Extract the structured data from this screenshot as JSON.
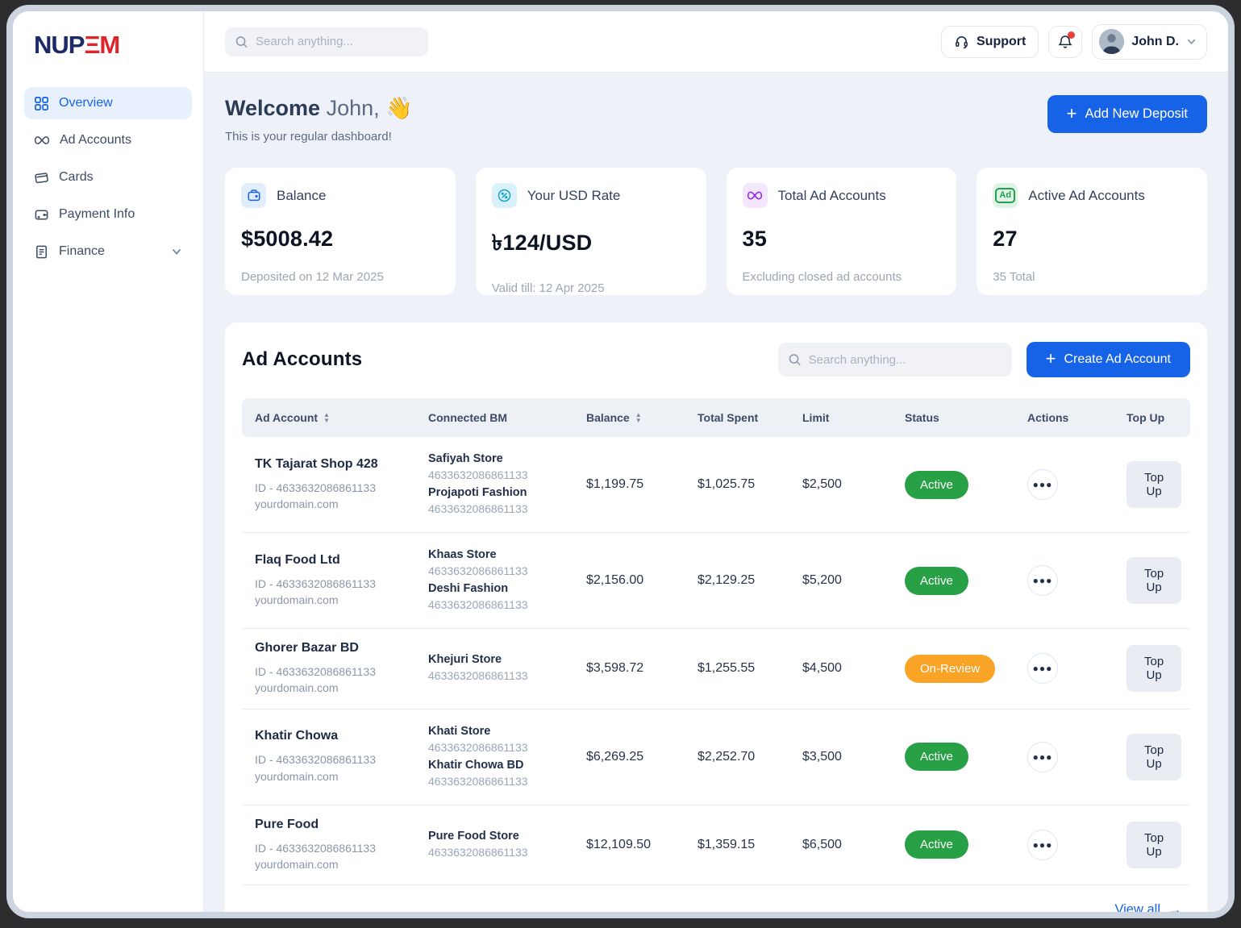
{
  "brand": {
    "logo_navy": "NUP",
    "logo_red": "ΞM"
  },
  "topbar": {
    "search_placeholder": "Search anything...",
    "support_label": "Support",
    "user_name": "John D."
  },
  "sidebar": {
    "items": [
      {
        "label": "Overview",
        "active": true
      },
      {
        "label": "Ad Accounts",
        "active": false
      },
      {
        "label": "Cards",
        "active": false
      },
      {
        "label": "Payment Info",
        "active": false
      },
      {
        "label": "Finance",
        "active": false,
        "expandable": true
      }
    ]
  },
  "welcome": {
    "title_bold": "Welcome",
    "title_name": "John,",
    "emoji": "👋",
    "subtitle": "This is your regular dashboard!",
    "deposit_button": "Add New Deposit"
  },
  "stats": [
    {
      "label": "Balance",
      "value": "$5008.42",
      "note": "Deposited on 12 Mar 2025",
      "icon": "wallet-icon"
    },
    {
      "label": "Your USD Rate",
      "value": "৳124/USD",
      "note": "Valid till: 12 Apr 2025",
      "icon": "percent-icon"
    },
    {
      "label": "Total Ad Accounts",
      "value": "35",
      "note": "Excluding closed ad accounts",
      "icon": "meta-icon"
    },
    {
      "label": "Active Ad Accounts",
      "value": "27",
      "note": "35 Total",
      "icon": "ad-badge-icon"
    }
  ],
  "table": {
    "title": "Ad Accounts",
    "search_placeholder": "Search anything...",
    "create_button": "Create Ad Account",
    "columns": [
      {
        "label": "Ad Account",
        "sortable": true
      },
      {
        "label": "Connected BM",
        "sortable": false
      },
      {
        "label": "Balance",
        "sortable": true
      },
      {
        "label": "Total Spent",
        "sortable": false
      },
      {
        "label": "Limit",
        "sortable": false
      },
      {
        "label": "Status",
        "sortable": false
      },
      {
        "label": "Actions",
        "sortable": false
      },
      {
        "label": "Top Up",
        "sortable": false
      }
    ],
    "topup_label": "Top Up",
    "view_all": "View all",
    "rows": [
      {
        "name": "TK Tajarat Shop 428",
        "id": "ID - 4633632086861133",
        "domain": "yourdomain.com",
        "bms": [
          {
            "name": "Safiyah Store",
            "id": "4633632086861133"
          },
          {
            "name": "Projapoti Fashion",
            "id": "4633632086861133"
          }
        ],
        "balance": "$1,199.75",
        "spent": "$1,025.75",
        "limit": "$2,500",
        "status": "Active"
      },
      {
        "name": "Flaq Food Ltd",
        "id": "ID - 4633632086861133",
        "domain": "yourdomain.com",
        "bms": [
          {
            "name": "Khaas Store",
            "id": "4633632086861133"
          },
          {
            "name": "Deshi Fashion",
            "id": "4633632086861133"
          }
        ],
        "balance": "$2,156.00",
        "spent": "$2,129.25",
        "limit": "$5,200",
        "status": "Active"
      },
      {
        "name": "Ghorer Bazar BD",
        "id": "ID - 4633632086861133",
        "domain": "yourdomain.com",
        "bms": [
          {
            "name": "Khejuri Store",
            "id": "4633632086861133"
          }
        ],
        "balance": "$3,598.72",
        "spent": "$1,255.55",
        "limit": "$4,500",
        "status": "On-Review"
      },
      {
        "name": "Khatir Chowa",
        "id": "ID - 4633632086861133",
        "domain": "yourdomain.com",
        "bms": [
          {
            "name": "Khati Store",
            "id": "4633632086861133"
          },
          {
            "name": "Khatir Chowa BD",
            "id": "4633632086861133"
          }
        ],
        "balance": "$6,269.25",
        "spent": "$2,252.70",
        "limit": "$3,500",
        "status": "Active"
      },
      {
        "name": "Pure Food",
        "id": "ID - 4633632086861133",
        "domain": "yourdomain.com",
        "bms": [
          {
            "name": "Pure Food Store",
            "id": "4633632086861133"
          }
        ],
        "balance": "$12,109.50",
        "spent": "$1,359.15",
        "limit": "$6,500",
        "status": "Active"
      }
    ]
  },
  "colors": {
    "accent_blue": "#1763E8",
    "status_active": "#28A146",
    "status_on_review": "#F9A327",
    "logo_navy": "#1D2A68",
    "logo_red": "#E0242B",
    "content_bg": "#EEF1F7"
  }
}
